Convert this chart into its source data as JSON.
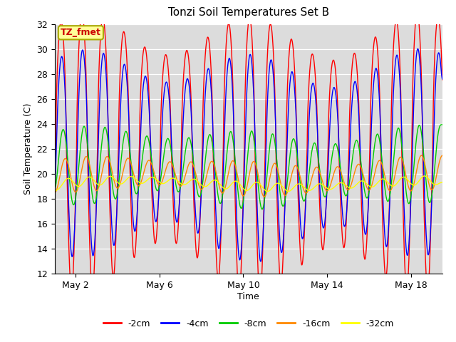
{
  "title": "Tonzi Soil Temperatures Set B",
  "xlabel": "Time",
  "ylabel": "Soil Temperature (C)",
  "ylim": [
    12,
    32
  ],
  "yticks": [
    12,
    14,
    16,
    18,
    20,
    22,
    24,
    26,
    28,
    30,
    32
  ],
  "xtick_labels": [
    "May 2",
    "May 6",
    "May 10",
    "May 14",
    "May 18"
  ],
  "xtick_positions": [
    1,
    5,
    9,
    13,
    17
  ],
  "bg_color": "#dcdcdc",
  "fig_color": "#ffffff",
  "annotation_text": "TZ_fmet",
  "annotation_bg": "#ffff99",
  "annotation_border": "#aaaa00",
  "series": [
    {
      "label": "-2cm",
      "color": "#ff0000",
      "amplitude": 8.5,
      "phase": 0.05,
      "mean": 22.5,
      "smoothing": 1
    },
    {
      "label": "-4cm",
      "color": "#0000ff",
      "amplitude": 6.8,
      "phase": 0.08,
      "mean": 21.8,
      "smoothing": 2
    },
    {
      "label": "-8cm",
      "color": "#00cc00",
      "amplitude": 3.0,
      "phase": 0.15,
      "mean": 20.5,
      "smoothing": 4
    },
    {
      "label": "-16cm",
      "color": "#ff8800",
      "amplitude": 1.6,
      "phase": 0.25,
      "mean": 19.8,
      "smoothing": 6
    },
    {
      "label": "-32cm",
      "color": "#ffff00",
      "amplitude": 0.7,
      "phase": 0.4,
      "mean": 19.2,
      "smoothing": 10
    }
  ],
  "num_days": 18.5,
  "points_per_day": 96
}
